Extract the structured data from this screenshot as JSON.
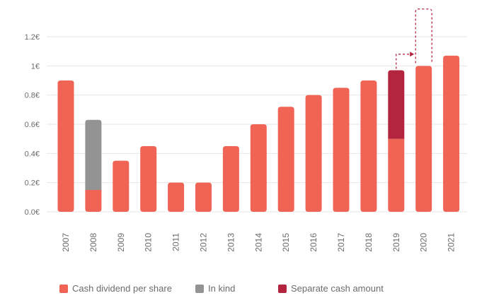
{
  "chart_data": {
    "type": "bar",
    "categories": [
      "2007",
      "2008",
      "2009",
      "2010",
      "2011",
      "2012",
      "2013",
      "2014",
      "2015",
      "2016",
      "2017",
      "2018",
      "2019",
      "2020",
      "2021"
    ],
    "series": [
      {
        "name": "Cash dividend per share",
        "color": "#f06455",
        "values": [
          0.9,
          0.15,
          0.35,
          0.45,
          0.2,
          0.2,
          0.45,
          0.6,
          0.72,
          0.8,
          0.85,
          0.9,
          0.5,
          1.0,
          1.07
        ]
      },
      {
        "name": "In kind",
        "color": "#939393",
        "values": [
          0,
          0.48,
          0,
          0,
          0,
          0,
          0,
          0,
          0,
          0,
          0,
          0,
          0,
          0,
          0
        ]
      },
      {
        "name": "Separate cash amount",
        "color": "#b3243e",
        "values": [
          0,
          0,
          0,
          0,
          0,
          0,
          0,
          0,
          0,
          0,
          0,
          0,
          0.47,
          0,
          0
        ]
      }
    ],
    "y_ticks": [
      "0.0€",
      "0.2€",
      "0.4€",
      "0.6€",
      "0.8€",
      "1€",
      "1.2€"
    ],
    "ylim": [
      0,
      1.2
    ],
    "annotation": {
      "from": "2019",
      "to": "2020",
      "deferred_top": 1.39,
      "style": "dashed-arrow",
      "color": "#b3243e"
    },
    "legend_position": "bottom"
  }
}
